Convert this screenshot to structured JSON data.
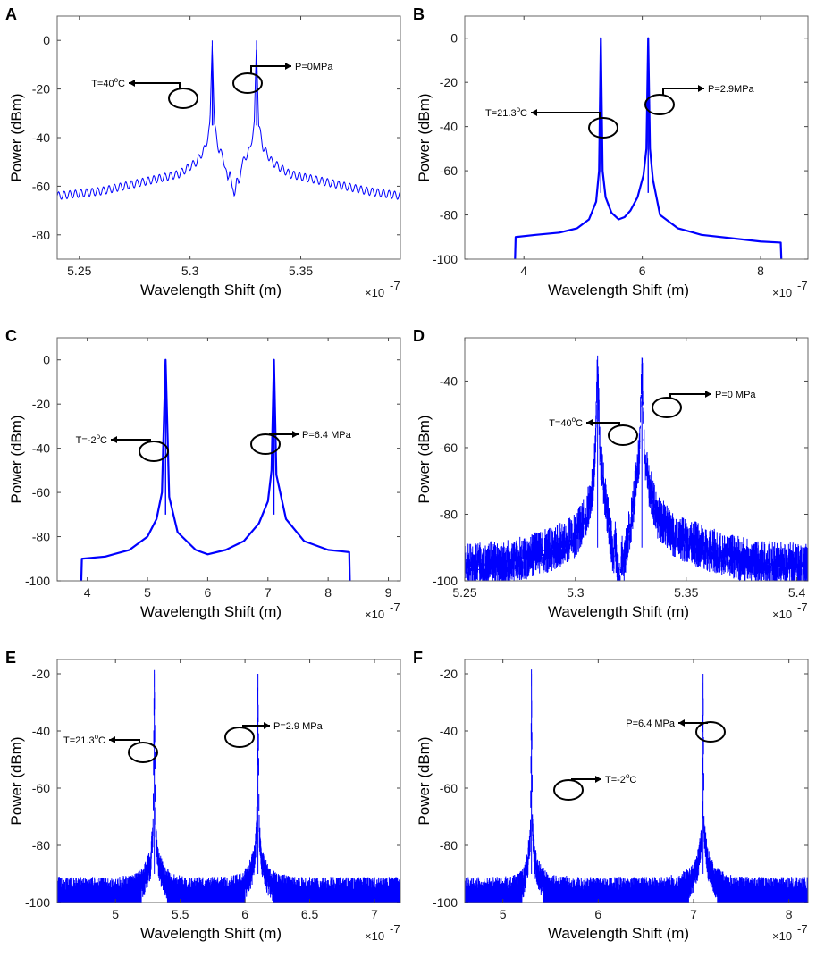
{
  "chart_data": [
    {
      "id": "A",
      "type": "line",
      "panel_label": "A",
      "xlabel": "Wavelength Shift (m)",
      "ylabel": "Power (dBm)",
      "x_multiplier": "×10",
      "x_multiplier_exp": "-7",
      "xlim": [
        5.24,
        5.395
      ],
      "ylim": [
        -90,
        10
      ],
      "xticks": [
        5.25,
        5.3,
        5.35
      ],
      "xtick_labels": [
        "5.25",
        "5.3",
        "5.35"
      ],
      "yticks": [
        0,
        -20,
        -40,
        -60,
        -80
      ],
      "ytick_labels": [
        "0",
        "-20",
        "-40",
        "-60",
        "-80"
      ],
      "series": [
        {
          "name": "spectrum",
          "color": "#0000ff",
          "style": "line",
          "x": [
            5.24,
            5.26,
            5.28,
            5.295,
            5.303,
            5.307,
            5.309,
            5.31,
            5.311,
            5.313,
            5.315,
            5.317,
            5.318,
            5.319,
            5.32,
            5.321,
            5.322,
            5.323,
            5.325,
            5.327,
            5.329,
            5.33,
            5.331,
            5.333,
            5.337,
            5.345,
            5.36,
            5.38,
            5.395
          ],
          "y": [
            -64,
            -62,
            -58,
            -55,
            -50,
            -44,
            -35,
            0,
            -35,
            -45,
            -48,
            -58,
            -52,
            -62,
            -63,
            -57,
            -60,
            -52,
            -48,
            -45,
            -35,
            0,
            -35,
            -44,
            -50,
            -55,
            -58,
            -62,
            -64
          ]
        }
      ],
      "annotations": [
        {
          "text": "T=40",
          "sup": "o",
          "tail": "C",
          "peak_x": 5.31,
          "ring_y": -22
        },
        {
          "text": "P=0MPa",
          "peak_x": 5.33,
          "ring_y": -16
        }
      ]
    },
    {
      "id": "B",
      "type": "line",
      "panel_label": "B",
      "xlabel": "Wavelength Shift (m)",
      "ylabel": "Power (dBm)",
      "x_multiplier": "×10",
      "x_multiplier_exp": "-7",
      "xlim": [
        3,
        8.8
      ],
      "ylim": [
        -100,
        10
      ],
      "xticks": [
        4,
        6,
        8
      ],
      "xtick_labels": [
        "4",
        "6",
        "8"
      ],
      "yticks": [
        0,
        -20,
        -40,
        -60,
        -80,
        -100
      ],
      "ytick_labels": [
        "0",
        "-20",
        "-40",
        "-60",
        "-80",
        "-100"
      ],
      "series": [
        {
          "name": "spectrum",
          "color": "#0000ff",
          "style": "thick",
          "x": [
            3.85,
            3.86,
            4.2,
            4.6,
            4.9,
            5.1,
            5.22,
            5.27,
            5.3,
            5.33,
            5.38,
            5.48,
            5.6,
            5.7,
            5.8,
            5.92,
            6.02,
            6.07,
            6.1,
            6.13,
            6.18,
            6.3,
            6.6,
            7.0,
            7.5,
            8.0,
            8.34,
            8.35
          ],
          "y": [
            -100,
            -90,
            -89,
            -88,
            -86,
            -82,
            -74,
            -60,
            0,
            -60,
            -72,
            -79,
            -82,
            -81,
            -78,
            -72,
            -62,
            -50,
            0,
            -50,
            -64,
            -80,
            -86,
            -89,
            -90.5,
            -92,
            -92.5,
            -100
          ]
        }
      ],
      "annotations": [
        {
          "text": "T=21.3",
          "sup": "o",
          "tail": "C",
          "peak_x": 5.3,
          "ring_y": -40
        },
        {
          "text": "P=2.9MPa",
          "peak_x": 6.1,
          "ring_y": -28
        }
      ]
    },
    {
      "id": "C",
      "type": "line",
      "panel_label": "C",
      "xlabel": "Wavelength Shift (m)",
      "ylabel": "Power (dBm)",
      "x_multiplier": "×10",
      "x_multiplier_exp": "-7",
      "xlim": [
        3.5,
        9.2
      ],
      "ylim": [
        -100,
        10
      ],
      "xticks": [
        4,
        5,
        6,
        7,
        8,
        9
      ],
      "xtick_labels": [
        "4",
        "5",
        "6",
        "7",
        "8",
        "9"
      ],
      "yticks": [
        0,
        -20,
        -40,
        -60,
        -80,
        -100
      ],
      "ytick_labels": [
        "0",
        "-20",
        "-40",
        "-60",
        "-80",
        "-100"
      ],
      "series": [
        {
          "name": "spectrum",
          "color": "#0000ff",
          "style": "thick",
          "x": [
            3.9,
            3.91,
            4.3,
            4.7,
            5.0,
            5.15,
            5.24,
            5.3,
            5.36,
            5.5,
            5.8,
            6.0,
            6.3,
            6.6,
            6.85,
            7.0,
            7.06,
            7.1,
            7.14,
            7.3,
            7.6,
            8.0,
            8.35,
            8.36
          ],
          "y": [
            -100,
            -90,
            -89,
            -86,
            -80,
            -72,
            -60,
            0,
            -62,
            -78,
            -86,
            -88,
            -86,
            -82,
            -74,
            -64,
            -50,
            0,
            -52,
            -72,
            -82,
            -86,
            -87,
            -100
          ]
        }
      ],
      "annotations": [
        {
          "text": "T=-2",
          "sup": "o",
          "tail": "C",
          "peak_x": 5.3,
          "ring_y": -37
        },
        {
          "text": "P=6.4 MPa",
          "peak_x": 7.1,
          "ring_y": -34
        }
      ]
    },
    {
      "id": "D",
      "type": "line",
      "panel_label": "D",
      "xlabel": "Wavelength Shift (m)",
      "ylabel": "Power (dBm)",
      "x_multiplier": "×10",
      "x_multiplier_exp": "-7",
      "xlim": [
        5.25,
        5.405
      ],
      "ylim": [
        -100,
        -27
      ],
      "xticks": [
        5.25,
        5.3,
        5.35,
        5.4
      ],
      "xtick_labels": [
        "5.25",
        "5.3",
        "5.35",
        "5.4"
      ],
      "yticks": [
        -40,
        -60,
        -80,
        -100
      ],
      "ytick_labels": [
        "-40",
        "-60",
        "-80",
        "-100"
      ],
      "series": [
        {
          "name": "spectrum",
          "color": "#0000ff",
          "style": "noisy",
          "x": [
            5.25,
            5.27,
            5.29,
            5.3,
            5.305,
            5.308,
            5.309,
            5.31,
            5.311,
            5.313,
            5.315,
            5.317,
            5.318,
            5.319,
            5.32,
            5.321,
            5.322,
            5.323,
            5.325,
            5.327,
            5.329,
            5.33,
            5.331,
            5.333,
            5.337,
            5.345,
            5.36,
            5.38,
            5.405
          ],
          "y": [
            -95,
            -94,
            -90,
            -86,
            -80,
            -70,
            -60,
            -33,
            -60,
            -72,
            -82,
            -92,
            -88,
            -97,
            -98,
            -92,
            -95,
            -88,
            -82,
            -72,
            -60,
            -33,
            -60,
            -70,
            -80,
            -86,
            -90,
            -94,
            -95
          ],
          "noise": 6
        }
      ],
      "annotations": [
        {
          "text": "T=40",
          "sup": "o",
          "tail": "C",
          "peak_x": 5.31,
          "ring_y": -53
        },
        {
          "text": "P=0 MPa",
          "peak_x": 5.33,
          "ring_y": -44
        }
      ]
    },
    {
      "id": "E",
      "type": "line",
      "panel_label": "E",
      "xlabel": "Wavelength Shift (m)",
      "ylabel": "Power (dBm)",
      "x_multiplier": "×10",
      "x_multiplier_exp": "-7",
      "xlim": [
        4.55,
        7.2
      ],
      "ylim": [
        -100,
        -15
      ],
      "xticks": [
        5,
        5.5,
        6,
        6.5,
        7
      ],
      "xtick_labels": [
        "5",
        "5.5",
        "6",
        "6.5",
        "7"
      ],
      "yticks": [
        -20,
        -40,
        -60,
        -80,
        -100
      ],
      "ytick_labels": [
        "-20",
        "-40",
        "-60",
        "-80",
        "-100"
      ],
      "series": [
        {
          "name": "spectrum",
          "color": "#0000ff",
          "style": "noisy_fill",
          "x": [
            4.55,
            5.0,
            5.15,
            5.22,
            5.27,
            5.29,
            5.3,
            5.31,
            5.33,
            5.38,
            5.45,
            5.6,
            5.8,
            5.95,
            6.02,
            6.07,
            6.09,
            6.1,
            6.11,
            6.13,
            6.18,
            6.25,
            6.5,
            7.2
          ],
          "y": [
            -96,
            -96,
            -95,
            -92,
            -86,
            -75,
            -20,
            -75,
            -86,
            -92,
            -95,
            -96,
            -96,
            -95,
            -92,
            -86,
            -75,
            -20,
            -75,
            -86,
            -92,
            -95,
            -96,
            -96
          ],
          "noise": 5,
          "gaps": [
            [
              5.2,
              5.4
            ],
            [
              6.0,
              6.22
            ]
          ]
        }
      ],
      "annotations": [
        {
          "text": "T=21.3",
          "sup": "o",
          "tail": "C",
          "peak_x": 5.3,
          "ring_y": -39
        },
        {
          "text": "P=2.9 MPa",
          "peak_x": 6.1,
          "ring_y": -35
        }
      ]
    },
    {
      "id": "F",
      "type": "line",
      "panel_label": "F",
      "xlabel": "Wavelength Shift (m)",
      "ylabel": "Power (dBm)",
      "x_multiplier": "×10",
      "x_multiplier_exp": "-7",
      "xlim": [
        4.6,
        8.2
      ],
      "ylim": [
        -100,
        -15
      ],
      "xticks": [
        5,
        6,
        7,
        8
      ],
      "xtick_labels": [
        "5",
        "6",
        "7",
        "8"
      ],
      "yticks": [
        -20,
        -40,
        -60,
        -80,
        -100
      ],
      "ytick_labels": [
        "-20",
        "-40",
        "-60",
        "-80",
        "-100"
      ],
      "series": [
        {
          "name": "spectrum",
          "color": "#0000ff",
          "style": "noisy_fill",
          "x": [
            4.6,
            5.0,
            5.15,
            5.22,
            5.26,
            5.29,
            5.3,
            5.31,
            5.34,
            5.4,
            5.5,
            5.8,
            6.2,
            6.6,
            6.85,
            6.98,
            7.05,
            7.09,
            7.1,
            7.11,
            7.15,
            7.22,
            7.35,
            7.6,
            8.2
          ],
          "y": [
            -96,
            -96,
            -95,
            -92,
            -86,
            -75,
            -20,
            -75,
            -86,
            -92,
            -95,
            -96,
            -96,
            -96,
            -95,
            -92,
            -86,
            -75,
            -20,
            -75,
            -86,
            -92,
            -95,
            -96,
            -96
          ],
          "noise": 5,
          "gaps": [
            [
              5.2,
              5.42
            ],
            [
              6.95,
              7.25
            ]
          ]
        }
      ],
      "annotations": [
        {
          "text": "T=-2",
          "sup": "o",
          "tail": "C",
          "peak_x": 5.3,
          "ring_y": -54
        },
        {
          "text": "P=6.4 MPa",
          "peak_x": 7.1,
          "ring_y": -33
        }
      ]
    }
  ]
}
